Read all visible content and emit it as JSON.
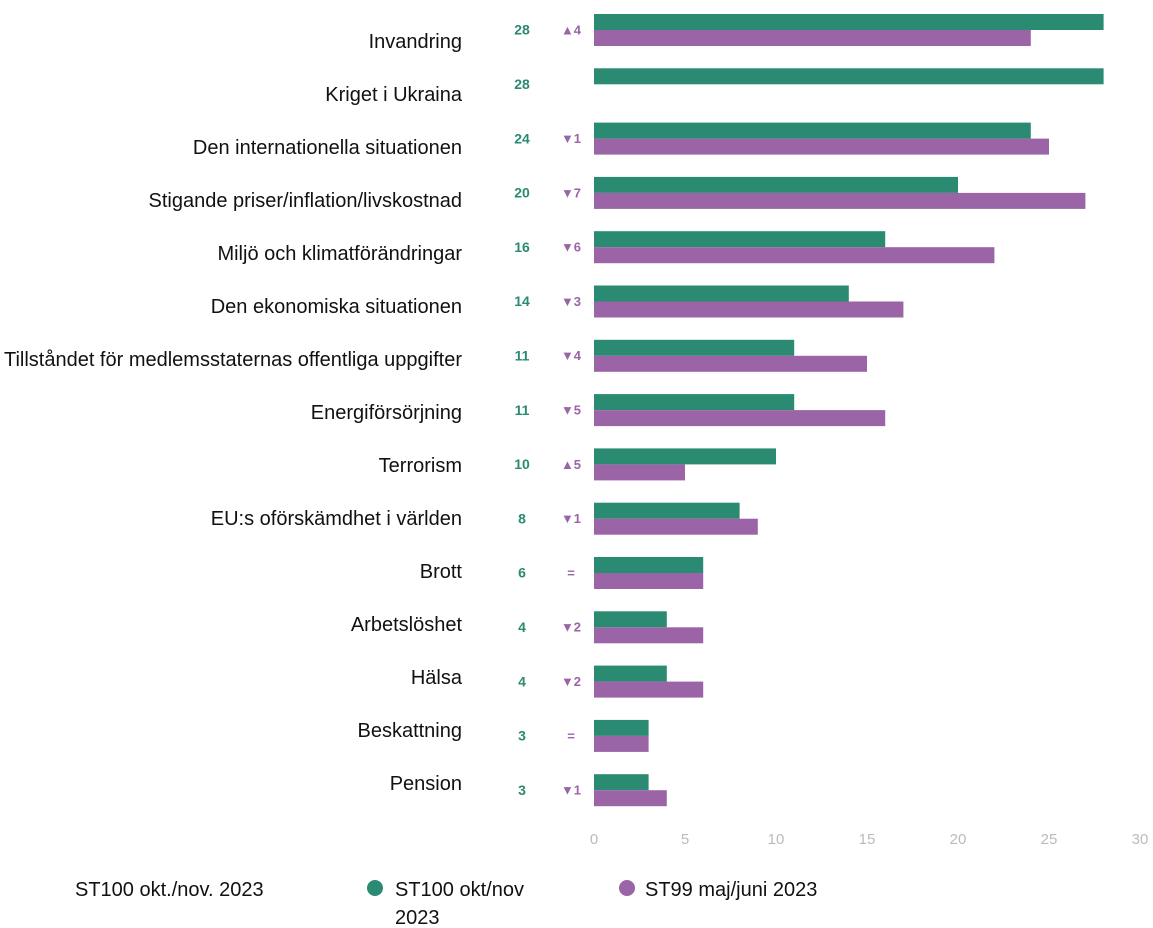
{
  "chart_data": {
    "type": "hbar",
    "caption": "ST100 okt./nov. 2023",
    "categories": [
      "Invandring",
      "Kriget i Ukraina",
      "Den internationella situationen",
      "Stigande priser/inflation/livskostnad",
      "Miljö och klimatförändringar",
      "Den ekonomiska situationen",
      "Tillståndet för medlemsstaternas offentliga uppgifter",
      "Energiförsörjning",
      "Terrorism",
      "EU:s oförskämdhet i världen",
      "Brott",
      "Arbetslöshet",
      "Hälsa",
      "Beskattning",
      "Pension"
    ],
    "series": [
      {
        "name": "ST100 okt/nov 2023",
        "color": "#2a8a72",
        "values": [
          28,
          28,
          24,
          20,
          16,
          14,
          11,
          11,
          10,
          8,
          6,
          4,
          4,
          3,
          3
        ]
      },
      {
        "name": "ST99 maj/juni 2023",
        "color": "#9a64a6",
        "values": [
          24,
          null,
          25,
          27,
          22,
          17,
          15,
          16,
          5,
          9,
          6,
          6,
          6,
          3,
          4
        ]
      }
    ],
    "change_labels": [
      "▲4",
      null,
      "▼1",
      "▼7",
      "▼6",
      "▼3",
      "▼4",
      "▼5",
      "▲5",
      "▼1",
      "=",
      "▼2",
      "▼2",
      "=",
      "▼1"
    ],
    "xlim": [
      0,
      30
    ],
    "xticks": [
      0,
      5,
      10,
      15,
      20,
      25,
      30
    ],
    "grid": false
  }
}
